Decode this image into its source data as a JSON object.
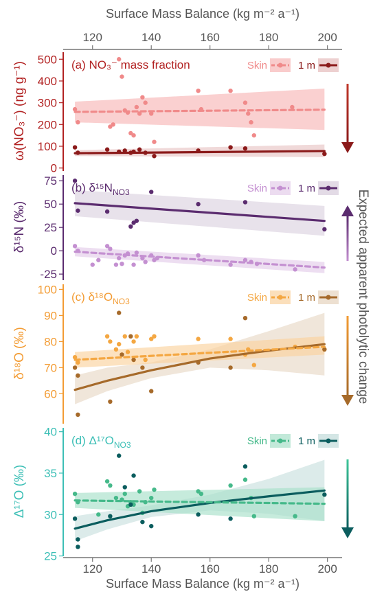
{
  "figure": {
    "top_axis_label": "Surface Mass Balance (kg m⁻² a⁻¹)",
    "bottom_axis_label": "Surface Mass Balance (kg m⁻² a⁻¹)",
    "side_label": "Expected apparent photolytic change",
    "x_ticks": [
      120,
      140,
      160,
      180,
      200
    ],
    "xlim": [
      110,
      205
    ]
  },
  "chart_data": [
    {
      "type": "scatter",
      "id": "a",
      "title": "(a) NO₃⁻ mass fraction",
      "ylabel": "ω(NO₃⁻) (ng g⁻¹)",
      "ylim": [
        -20,
        545
      ],
      "yticks": [
        0,
        100,
        200,
        300,
        400,
        500
      ],
      "arrow_direction": "down",
      "colors": {
        "axis": "#b22222",
        "skin": "#f08a8a",
        "skin_band": "#f7b7b7",
        "m1": "#8b1a1a",
        "m1_band": "#e8c4c4",
        "arrow_top": "#c0392b",
        "arrow_bottom": "#8b1a1a"
      },
      "legend": {
        "skin": "Skin",
        "m1": "1 m"
      },
      "series": [
        {
          "name": "Skin",
          "x": [
            114,
            115,
            126,
            127,
            129,
            130,
            131,
            132,
            133,
            134,
            135,
            136,
            137,
            138,
            140,
            141,
            156,
            157,
            167,
            172,
            173,
            174,
            175,
            188
          ],
          "y": [
            270,
            210,
            190,
            200,
            500,
            420,
            265,
            255,
            160,
            150,
            280,
            250,
            325,
            300,
            250,
            120,
            355,
            270,
            355,
            300,
            250,
            210,
            150,
            280
          ],
          "fit_x": [
            114,
            199
          ],
          "fit_y": [
            258,
            268
          ],
          "band_lo": [
            210,
            175
          ],
          "band_hi": [
            305,
            365
          ]
        },
        {
          "name": "1 m",
          "x": [
            114,
            115,
            125,
            129,
            131,
            133,
            134,
            136,
            138,
            141,
            156,
            167,
            172,
            199
          ],
          "y": [
            95,
            70,
            85,
            75,
            80,
            70,
            75,
            85,
            70,
            55,
            80,
            95,
            90,
            65
          ],
          "fit_x": [
            114,
            199
          ],
          "fit_y": [
            68,
            78
          ],
          "band_lo": [
            55,
            50
          ],
          "band_hi": [
            82,
            108
          ]
        }
      ]
    },
    {
      "type": "scatter",
      "id": "b",
      "title": "(b) δ¹⁵N",
      "title_sub": "NO3",
      "ylabel": "δ¹⁵N (‰)",
      "ylim": [
        -33,
        84
      ],
      "yticks": [
        -25,
        0,
        25,
        50,
        75
      ],
      "arrow_direction": "up",
      "colors": {
        "axis": "#5b2c6f",
        "skin": "#c490d1",
        "skin_band": "#e4cdea",
        "m1": "#5b2c6f",
        "m1_band": "#dcd2e0",
        "arrow_top": "#5b2c6f",
        "arrow_bottom": "#c490d1"
      },
      "legend": {
        "skin": "Skin",
        "m1": "1 m"
      },
      "series": [
        {
          "name": "Skin",
          "x": [
            114,
            115,
            120,
            122,
            125,
            126,
            128,
            129,
            130,
            131,
            132,
            134,
            135,
            137,
            138,
            140,
            141,
            142,
            156,
            158,
            167,
            172,
            174,
            176,
            189
          ],
          "y": [
            5,
            0,
            -15,
            -10,
            5,
            2,
            -15,
            -8,
            -14,
            -5,
            -3,
            -15,
            -2,
            -8,
            -12,
            -5,
            -10,
            -8,
            -5,
            -10,
            -15,
            -10,
            -12,
            -14,
            -20
          ],
          "fit_x": [
            114,
            199
          ],
          "fit_y": [
            -1,
            -18
          ],
          "band_lo": [
            -6,
            -24
          ],
          "band_hi": [
            4,
            -12
          ]
        },
        {
          "name": "1 m",
          "x": [
            114,
            115,
            125,
            133,
            134,
            135,
            140,
            156,
            172,
            199
          ],
          "y": [
            75,
            43,
            42,
            26,
            30,
            32,
            63,
            50,
            52,
            23
          ],
          "fit_x": [
            114,
            199
          ],
          "fit_y": [
            51,
            32
          ],
          "band_lo": [
            37,
            16
          ],
          "band_hi": [
            65,
            48
          ]
        }
      ]
    },
    {
      "type": "scatter",
      "id": "c",
      "title": "(c) δ¹⁸O",
      "title_sub": "NO3",
      "ylabel": "δ¹⁸O (‰)",
      "ylim": [
        48,
        103
      ],
      "yticks": [
        60,
        70,
        80,
        90,
        100
      ],
      "arrow_direction": "down",
      "colors": {
        "axis": "#f39c34",
        "skin": "#f4a742",
        "skin_band": "#fad29e",
        "m1": "#a66a2a",
        "m1_band": "#e8d8c6",
        "arrow_top": "#f39c34",
        "arrow_bottom": "#a66a2a"
      },
      "legend": {
        "skin": "Skin",
        "m1": "1 m"
      },
      "series": [
        {
          "name": "Skin",
          "x": [
            114,
            115,
            125,
            126,
            128,
            129,
            130,
            131,
            132,
            134,
            135,
            138,
            140,
            141,
            156,
            167,
            172,
            173,
            175,
            189,
            199
          ],
          "y": [
            74,
            72,
            82,
            80,
            77,
            79,
            75,
            82,
            76,
            80,
            82,
            73,
            81,
            82,
            81,
            81,
            75,
            77,
            71,
            78,
            77
          ],
          "fit_x": [
            114,
            199
          ],
          "fit_y": [
            73,
            78
          ],
          "band_lo": [
            70,
            75
          ],
          "band_hi": [
            76,
            82
          ]
        },
        {
          "name": "1 m",
          "x": [
            114,
            115,
            115,
            126,
            129,
            130,
            133,
            134,
            137,
            140,
            156,
            167,
            172,
            199
          ],
          "y": [
            70,
            67,
            52,
            57,
            91,
            75,
            82,
            73,
            70,
            61,
            72,
            70,
            89,
            77
          ],
          "fit_x": [
            114,
            125,
            140,
            160,
            180,
            199
          ],
          "fit_y": [
            61.5,
            65,
            69,
            73.5,
            76.5,
            79
          ],
          "band_lo": [
            56,
            61,
            66,
            70,
            69,
            67
          ],
          "band_hi": [
            67,
            70,
            72,
            77,
            84,
            91
          ]
        }
      ]
    },
    {
      "type": "scatter",
      "id": "d",
      "title": "(d) Δ¹⁷O",
      "title_sub": "NO3",
      "ylabel": "Δ¹⁷O (‰)",
      "ylim": [
        24.8,
        40.8
      ],
      "yticks": [
        25,
        30,
        35,
        40
      ],
      "arrow_direction": "down",
      "colors": {
        "axis": "#3cbfb6",
        "skin": "#45b98a",
        "skin_band": "#a8e0c9",
        "m1": "#0b5d5e",
        "m1_band": "#c9e0df",
        "arrow_top": "#3fc79a",
        "arrow_bottom": "#0b5d5e"
      },
      "legend": {
        "skin": "Skin",
        "m1": "1 m"
      },
      "series": [
        {
          "name": "Skin",
          "x": [
            114,
            115,
            122,
            125,
            126,
            128,
            130,
            131,
            132,
            133,
            134,
            136,
            137,
            138,
            140,
            141,
            156,
            157,
            167,
            172,
            174,
            175,
            189
          ],
          "y": [
            32.5,
            31.5,
            30,
            34,
            33.5,
            32,
            31.8,
            32.5,
            31,
            31.5,
            31.2,
            32.8,
            30.2,
            31.5,
            32,
            33,
            32.8,
            32.5,
            33.5,
            34.2,
            32,
            29.8,
            29.8
          ],
          "fit_x": [
            114,
            199
          ],
          "fit_y": [
            31.7,
            31.3
          ],
          "band_lo": [
            30.8,
            29.2
          ],
          "band_hi": [
            32.6,
            33.3
          ]
        },
        {
          "name": "1 m",
          "x": [
            114,
            115,
            115,
            126,
            129,
            131,
            133,
            134,
            137,
            140,
            156,
            167,
            172,
            199
          ],
          "y": [
            29.5,
            27,
            26.1,
            29.8,
            37.1,
            33.3,
            31.2,
            34.7,
            29.1,
            28.6,
            30,
            29.5,
            35.8,
            32.4
          ],
          "fit_x": [
            114,
            125,
            140,
            160,
            180,
            199
          ],
          "fit_y": [
            28.3,
            29.3,
            30.4,
            31.4,
            32.2,
            32.9
          ],
          "band_lo": [
            26.8,
            28.2,
            29.7,
            30.5,
            30.1,
            29.2
          ],
          "band_hi": [
            29.8,
            30.4,
            31.1,
            32.4,
            34.3,
            36.6
          ]
        }
      ]
    }
  ]
}
